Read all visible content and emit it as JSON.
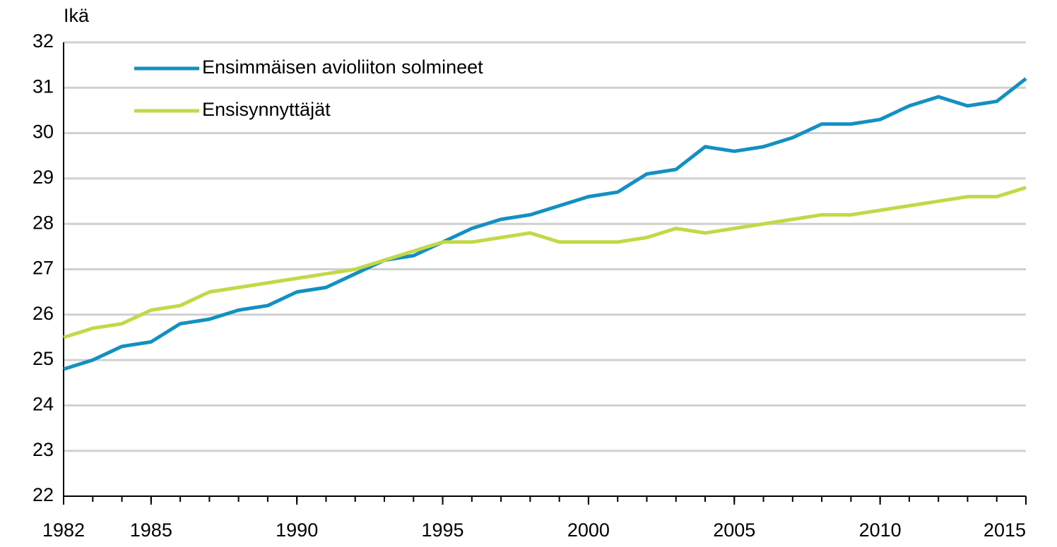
{
  "chart_data": {
    "type": "line",
    "ylabel": "Ikä",
    "x": [
      1982,
      1983,
      1984,
      1985,
      1986,
      1987,
      1988,
      1989,
      1990,
      1991,
      1992,
      1993,
      1994,
      1995,
      1996,
      1997,
      1998,
      1999,
      2000,
      2001,
      2002,
      2003,
      2004,
      2005,
      2006,
      2007,
      2008,
      2009,
      2010,
      2011,
      2012,
      2013,
      2014,
      2015
    ],
    "series": [
      {
        "name": "Ensimmäisen avioliiton solmineet",
        "color": "#1390c2",
        "values": [
          24.8,
          25.0,
          25.3,
          25.4,
          25.8,
          25.9,
          26.1,
          26.2,
          26.5,
          26.6,
          26.9,
          27.2,
          27.3,
          27.6,
          27.9,
          28.1,
          28.2,
          28.4,
          28.6,
          28.7,
          29.1,
          29.2,
          29.7,
          29.6,
          29.7,
          29.9,
          30.2,
          30.2,
          30.3,
          30.6,
          30.8,
          30.6,
          30.7,
          31.2
        ]
      },
      {
        "name": "Ensisynnyttäjät",
        "color": "#c3d846",
        "values": [
          25.5,
          25.7,
          25.8,
          26.1,
          26.2,
          26.5,
          26.6,
          26.7,
          26.8,
          26.9,
          27.0,
          27.2,
          27.4,
          27.6,
          27.6,
          27.7,
          27.8,
          27.6,
          27.6,
          27.6,
          27.7,
          27.9,
          27.8,
          27.9,
          28.0,
          28.1,
          28.2,
          28.2,
          28.3,
          28.4,
          28.5,
          28.6,
          28.6,
          28.8
        ]
      }
    ],
    "xlim": [
      1982,
      2015
    ],
    "xticks": [
      1982,
      1985,
      1990,
      1995,
      2000,
      2005,
      2010,
      2015
    ],
    "ylim": [
      22,
      32
    ],
    "yticks": [
      22,
      23,
      24,
      25,
      26,
      27,
      28,
      29,
      30,
      31,
      32
    ],
    "grid": true,
    "legend": "upper left"
  }
}
